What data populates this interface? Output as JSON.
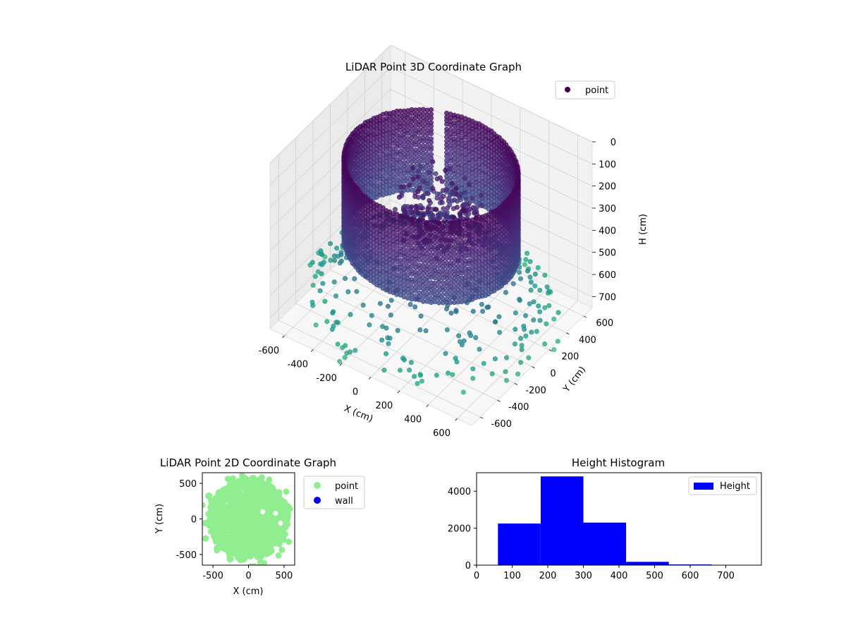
{
  "chart_data": [
    {
      "type": "scatter",
      "subtype": "3d",
      "title": "LiDAR Point 3D Coordinate Graph",
      "xlabel": "X (cm)",
      "ylabel": "Y (cm)",
      "zlabel": "H (cm)",
      "xlim": [
        -700,
        700
      ],
      "ylim": [
        -700,
        700
      ],
      "zlim": [
        0,
        750
      ],
      "z_inverted": true,
      "x_ticks": [
        -600,
        -400,
        -200,
        0,
        200,
        400,
        600
      ],
      "y_ticks": [
        -600,
        -400,
        -200,
        0,
        200,
        400,
        600
      ],
      "z_ticks": [
        0,
        100,
        200,
        300,
        400,
        500,
        600,
        700
      ],
      "grid": true,
      "legend": "upper-right",
      "series": [
        {
          "name": "point",
          "color": "#440154",
          "colormap": "viridis",
          "description_values": {
            "wall_radius": 520,
            "wall_height_range": [
              60,
              420
            ],
            "outlier_radius_range": [
              250,
              750
            ],
            "outlier_height_range": [
              380,
              750
            ]
          }
        }
      ]
    },
    {
      "type": "scatter",
      "title": "LiDAR Point 2D Coordinate Graph",
      "xlabel": "X (cm)",
      "ylabel": "Y (cm)",
      "xlim": [
        -650,
        650
      ],
      "ylim": [
        -650,
        650
      ],
      "x_ticks": [
        -500,
        0,
        500
      ],
      "y_ticks": [
        -500,
        0,
        500
      ],
      "legend": "outside-right",
      "series": [
        {
          "name": "point",
          "color": "#90ee90"
        },
        {
          "name": "wall",
          "color": "#0000ff"
        }
      ]
    },
    {
      "type": "bar",
      "subtype": "histogram",
      "title": "Height Histogram",
      "xlabel": "",
      "ylabel": "",
      "xlim": [
        0,
        800
      ],
      "ylim": [
        0,
        5000
      ],
      "x_ticks": [
        0,
        100,
        200,
        300,
        400,
        500,
        600,
        700
      ],
      "y_ticks": [
        0,
        2000,
        4000
      ],
      "legend": "upper-right",
      "color": "#0000ff",
      "series": [
        {
          "name": "Height",
          "bins": [
            [
              60,
              180
            ],
            [
              180,
              300
            ],
            [
              300,
              420
            ],
            [
              420,
              540
            ],
            [
              540,
              660
            ],
            [
              660,
              780
            ]
          ],
          "values": [
            2250,
            4800,
            2300,
            180,
            40,
            8
          ]
        }
      ]
    }
  ]
}
